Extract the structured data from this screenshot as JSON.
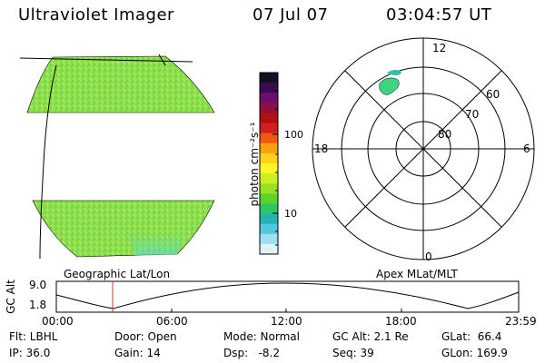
{
  "header": {
    "instrument": "Ultraviolet Imager",
    "date": "07 Jul 07",
    "time": "03:04:57 UT"
  },
  "colorbar": {
    "unit_label": "photon cm⁻²s⁻¹",
    "ticks": [
      "100",
      "10"
    ],
    "colors": [
      "#101020",
      "#3b0a52",
      "#6a0f6a",
      "#8e1040",
      "#b01010",
      "#d22020",
      "#ef5a10",
      "#f8a010",
      "#ffd21e",
      "#f7f728",
      "#cfee22",
      "#99e022",
      "#5cd22a",
      "#2ec46a",
      "#22b4b0",
      "#4fc8e0",
      "#9ae0f2",
      "#e0f2f8"
    ]
  },
  "labels": {
    "geo": "Geographic Lat/Lon",
    "apex": "Apex MLat/MLT"
  },
  "polar": {
    "mlt_labels": [
      "12",
      "18",
      "6",
      "0"
    ],
    "lat_labels": [
      "60",
      "70",
      "80"
    ]
  },
  "altitude_plot": {
    "ylabel": "GC Alt",
    "yticks": [
      "9.0",
      "1.8"
    ],
    "xticks": [
      "00:00",
      "06:00",
      "12:00",
      "18:00",
      "23:59"
    ]
  },
  "status": {
    "flt": "Flt: LBHL",
    "ip": "IP: 36.0",
    "door": "Door: Open",
    "gain": "Gain: 14",
    "mode": "Mode: Normal",
    "dsp": "Dsp:   -8.2",
    "gcalt": "GC Alt: 2.1 Re",
    "seq": "Seq: 39",
    "glat": "GLat:  66.4",
    "glon": "GLon: 169.9"
  }
}
